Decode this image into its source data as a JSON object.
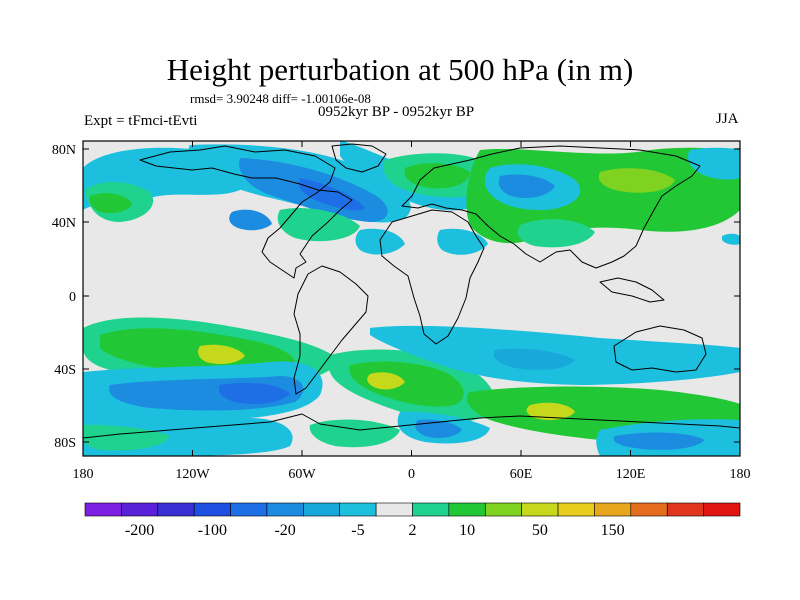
{
  "header": {
    "title": "Height perturbation at 500 hPa (in m)",
    "stats": "rmsd= 3.90248 diff= -1.00106e-08",
    "experiment": "Expt = tFmci-tEvti",
    "period": "0952kyr BP - 0952kyr BP",
    "season": "JJA"
  },
  "axes": {
    "lat_ticks": [
      "80N",
      "40N",
      "0",
      "40S",
      "80S"
    ],
    "lon_ticks": [
      "180",
      "120W",
      "60W",
      "0",
      "60E",
      "120E",
      "180"
    ]
  },
  "colorbar": {
    "colors": [
      "#7B1FE3",
      "#5A22D8",
      "#3A2FD1",
      "#1F4FE0",
      "#1E6FE6",
      "#1C8CE0",
      "#18A8DA",
      "#1CC0DE",
      "#E8E8E8",
      "#1FD38E",
      "#22C735",
      "#7FD320",
      "#C6D81B",
      "#E8CC1E",
      "#E8A51E",
      "#E46E1E",
      "#E0361D",
      "#E21515"
    ],
    "labels": [
      "-200",
      "-100",
      "-20",
      "-5",
      "2",
      "10",
      "50",
      "150"
    ]
  },
  "field_colors": {
    "neutral": "#E8E8E8",
    "light_blue": "#1CC0DE",
    "mid_blue": "#18A8DA",
    "blue": "#1C8CE0",
    "deep_blue": "#1E6FE6",
    "cyan_green": "#1FD38E",
    "green": "#22C735",
    "yellow_green": "#C6D81B"
  }
}
